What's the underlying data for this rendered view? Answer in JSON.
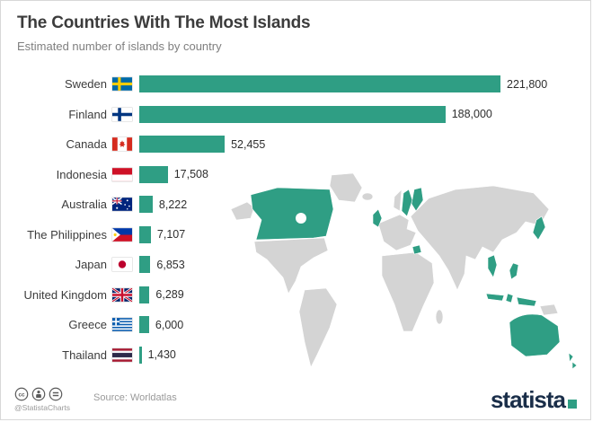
{
  "header": {
    "title": "The Countries With The Most Islands",
    "subtitle": "Estimated number of islands by country"
  },
  "chart_data": {
    "type": "bar",
    "orientation": "horizontal",
    "title": "The Countries With The Most Islands",
    "xlabel": "",
    "ylabel": "",
    "xlim": [
      0,
      221800
    ],
    "grid": false,
    "legend": false,
    "categories": [
      "Sweden",
      "Finland",
      "Canada",
      "Indonesia",
      "Australia",
      "The Philippines",
      "Japan",
      "United Kingdom",
      "Greece",
      "Thailand"
    ],
    "values": [
      221800,
      188000,
      52455,
      17508,
      8222,
      7107,
      6853,
      6289,
      6000,
      1430
    ],
    "value_labels": [
      "221,800",
      "188,000",
      "52,455",
      "17,508",
      "8,222",
      "7,107",
      "6,853",
      "6,289",
      "6,000",
      "1,430"
    ],
    "flags": [
      "flag-sweden",
      "flag-finland",
      "flag-canada",
      "flag-indonesia",
      "flag-australia",
      "flag-philippines",
      "flag-japan",
      "flag-uk",
      "flag-greece",
      "flag-thailand"
    ],
    "background": "world-map-highlighting-listed-countries"
  },
  "colors": {
    "bar": "#2f9e84",
    "map_land": "#d4d4d4",
    "map_highlight": "#2f9e84",
    "title_text": "#3c3c3c",
    "subtitle_text": "#7f7f7f",
    "brand_navy": "#1a2e49"
  },
  "footer": {
    "license_icons": [
      "cc-icon",
      "attribution-icon",
      "no-derivatives-icon"
    ],
    "handle": "@StatistaCharts",
    "source": "Source: Worldatlas",
    "brand": "statista"
  }
}
